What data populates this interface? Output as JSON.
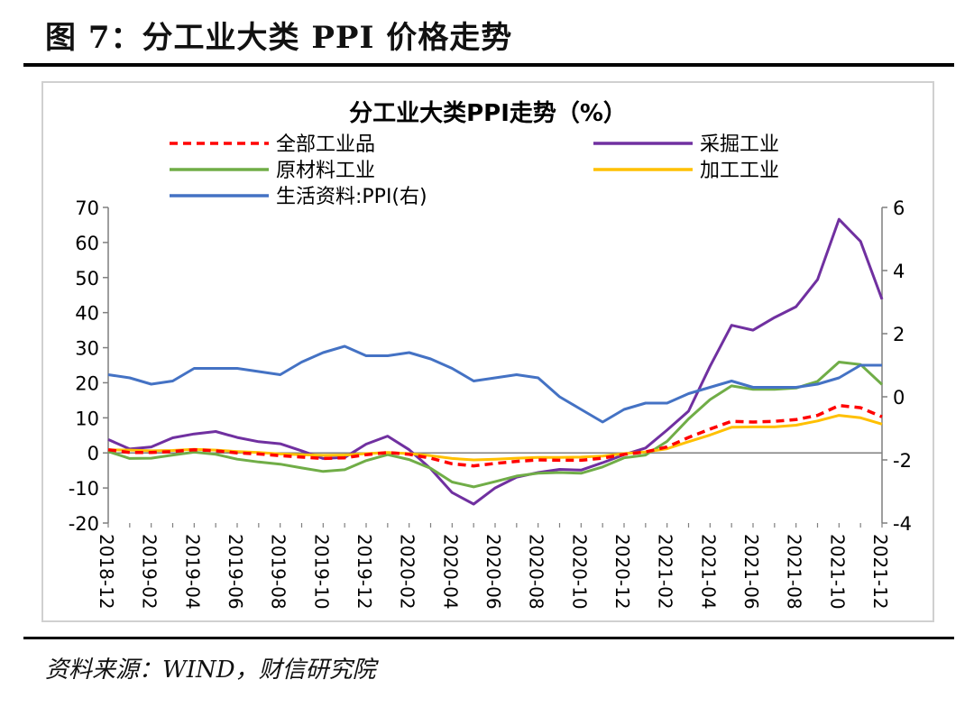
{
  "figure_title": "图 7：分工业大类 PPI 价格走势",
  "source": "资料来源：WIND，财信研究院",
  "chart_data": {
    "type": "line",
    "title": "分工业大类PPI走势（%）",
    "x": [
      "2018-12",
      "2019-01",
      "2019-02",
      "2019-03",
      "2019-04",
      "2019-05",
      "2019-06",
      "2019-07",
      "2019-08",
      "2019-09",
      "2019-10",
      "2019-11",
      "2019-12",
      "2020-01",
      "2020-02",
      "2020-03",
      "2020-04",
      "2020-05",
      "2020-06",
      "2020-07",
      "2020-08",
      "2020-09",
      "2020-10",
      "2020-11",
      "2020-12",
      "2021-01",
      "2021-02",
      "2021-03",
      "2021-04",
      "2021-05",
      "2021-06",
      "2021-07",
      "2021-08",
      "2021-09",
      "2021-10",
      "2021-11",
      "2021-12"
    ],
    "x_tick_labels": [
      "2018-12",
      "2019-02",
      "2019-04",
      "2019-06",
      "2019-08",
      "2019-10",
      "2019-12",
      "2020-02",
      "2020-04",
      "2020-06",
      "2020-08",
      "2020-10",
      "2020-12",
      "2021-02",
      "2021-04",
      "2021-06",
      "2021-08",
      "2021-10",
      "2021-12"
    ],
    "y_left": {
      "min": -20,
      "max": 70,
      "ticks": [
        -20,
        -10,
        0,
        10,
        20,
        30,
        40,
        50,
        60,
        70
      ]
    },
    "y_right": {
      "min": -4,
      "max": 6,
      "ticks": [
        -4,
        -2,
        0,
        2,
        4,
        6
      ]
    },
    "grid": false,
    "legend_position": "top",
    "series": [
      {
        "name": "全部工业品",
        "axis": "left",
        "color": "#ff0000",
        "dash": true,
        "values": [
          0.9,
          0.1,
          0.1,
          0.4,
          0.9,
          0.6,
          0.0,
          -0.3,
          -0.8,
          -1.2,
          -1.6,
          -1.4,
          -0.5,
          0.1,
          -0.4,
          -1.5,
          -3.1,
          -3.7,
          -3.0,
          -2.4,
          -2.0,
          -2.1,
          -2.1,
          -1.5,
          -0.4,
          0.3,
          1.7,
          4.4,
          6.8,
          9.0,
          8.8,
          9.0,
          9.5,
          10.7,
          13.5,
          12.9,
          10.3
        ]
      },
      {
        "name": "采掘工业",
        "axis": "left",
        "color": "#7030a0",
        "dash": false,
        "values": [
          3.8,
          1.1,
          1.7,
          4.3,
          5.4,
          6.1,
          4.4,
          3.2,
          2.6,
          0.6,
          -1.6,
          -1.3,
          2.5,
          4.8,
          0.9,
          -4.5,
          -11.3,
          -14.6,
          -10.0,
          -6.9,
          -5.6,
          -4.7,
          -4.9,
          -2.8,
          -0.5,
          1.4,
          6.5,
          11.9,
          24.7,
          36.4,
          35.0,
          38.6,
          41.7,
          49.4,
          66.6,
          60.3,
          43.8
        ]
      },
      {
        "name": "原材料工业",
        "axis": "left",
        "color": "#70ad47",
        "dash": false,
        "values": [
          0.4,
          -1.6,
          -1.5,
          -0.6,
          0.2,
          -0.4,
          -1.8,
          -2.6,
          -3.2,
          -4.3,
          -5.3,
          -4.8,
          -2.2,
          -0.5,
          -1.9,
          -4.4,
          -8.3,
          -9.7,
          -8.2,
          -6.6,
          -5.8,
          -5.6,
          -5.8,
          -4.0,
          -1.4,
          -0.6,
          3.3,
          9.7,
          15.2,
          19.1,
          18.1,
          18.1,
          18.5,
          20.4,
          25.9,
          25.2,
          19.5
        ]
      },
      {
        "name": "加工工业",
        "axis": "left",
        "color": "#ffc000",
        "dash": false,
        "values": [
          0.9,
          0.8,
          0.6,
          0.7,
          1.0,
          0.8,
          0.4,
          0.1,
          -0.3,
          -0.5,
          -0.7,
          -0.6,
          -0.2,
          0.1,
          -0.2,
          -0.8,
          -1.6,
          -2.0,
          -1.8,
          -1.5,
          -1.3,
          -1.3,
          -1.2,
          -0.9,
          -0.2,
          0.3,
          1.2,
          3.2,
          5.1,
          7.3,
          7.4,
          7.4,
          7.9,
          9.1,
          10.7,
          10.0,
          8.2
        ]
      },
      {
        "name": "生活资料:PPI(右)",
        "axis": "right",
        "color": "#4472c4",
        "dash": false,
        "values": [
          0.7,
          0.6,
          0.4,
          0.5,
          0.9,
          0.9,
          0.9,
          0.8,
          0.7,
          1.1,
          1.4,
          1.6,
          1.3,
          1.3,
          1.4,
          1.2,
          0.9,
          0.5,
          0.6,
          0.7,
          0.6,
          0.0,
          -0.4,
          -0.8,
          -0.4,
          -0.2,
          -0.2,
          0.1,
          0.3,
          0.5,
          0.3,
          0.3,
          0.3,
          0.4,
          0.6,
          1.0,
          1.0
        ]
      }
    ]
  }
}
